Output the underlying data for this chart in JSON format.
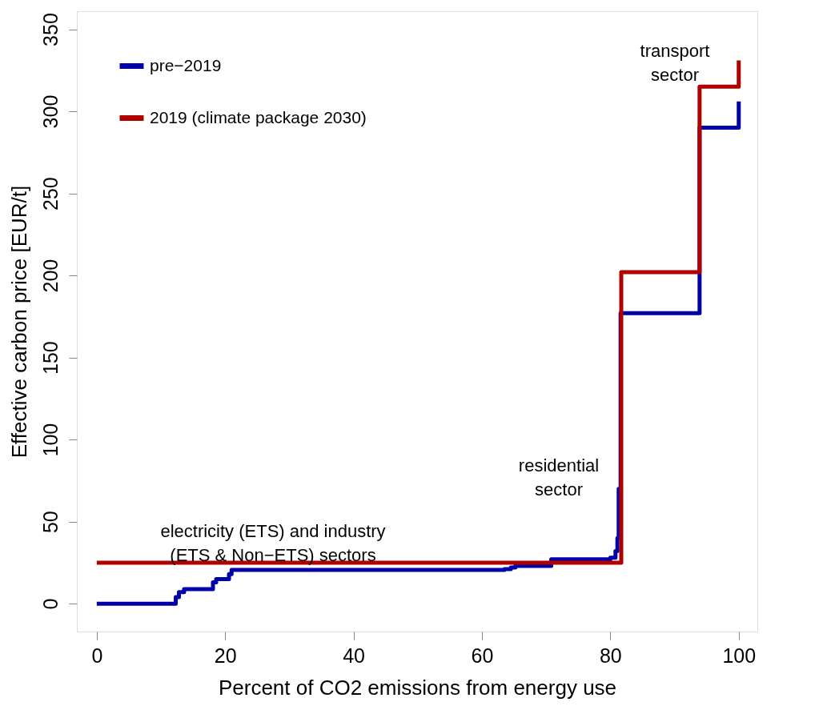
{
  "chart_data": {
    "type": "step",
    "xlabel": "Percent of CO2 emissions from energy use",
    "ylabel": "Effective carbon price [EUR/t]",
    "xlim": [
      -3.1,
      102.9
    ],
    "xticks": [
      0,
      20,
      40,
      60,
      80,
      100
    ],
    "ylim": [
      -17,
      361
    ],
    "yticks": [
      0,
      50,
      100,
      150,
      200,
      250,
      300,
      350
    ],
    "grid": false,
    "legend": "top left",
    "line_style": "solid",
    "series": [
      {
        "name": "pre−2019",
        "color": "#0000a8",
        "x": [
          0,
          12.3,
          12.8,
          13.6,
          18.1,
          18.6,
          20.6,
          21,
          63.5,
          64.5,
          65.2,
          70.8,
          80,
          80.8,
          81.1,
          81.3,
          81.6,
          93.9,
          100,
          100
        ],
        "values": [
          0,
          4,
          7,
          8.8,
          13,
          15,
          18,
          20.5,
          21,
          22,
          23,
          27,
          28,
          32,
          40,
          70,
          177,
          290,
          290,
          306
        ]
      },
      {
        "name": "2019 (climate package 2030)",
        "color": "#b00000",
        "x": [
          0,
          81.7,
          93.9,
          100,
          100
        ],
        "values": [
          25,
          202,
          315,
          315,
          331
        ]
      }
    ],
    "annotations": [
      "electricity (ETS) and industry\n(ETS & Non−ETS) sectors",
      "residential\nsector",
      "transport\nsector"
    ]
  }
}
